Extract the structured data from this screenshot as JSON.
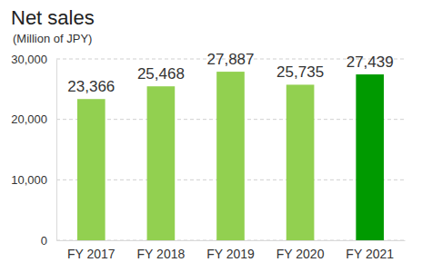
{
  "chart_data": {
    "type": "bar",
    "title": "Net sales",
    "subtitle": "(Million of JPY)",
    "categories": [
      "FY 2017",
      "FY 2018",
      "FY 2019",
      "FY 2020",
      "FY 2021"
    ],
    "values": [
      23366,
      25468,
      27887,
      25735,
      27439
    ],
    "value_labels": [
      "23,366",
      "25,468",
      "27,887",
      "25,735",
      "27,439"
    ],
    "colors": [
      "#92d050",
      "#92d050",
      "#92d050",
      "#92d050",
      "#009a00"
    ],
    "ylim": [
      0,
      30000
    ],
    "yticks": [
      0,
      {
        "value": 10000,
        "label": "10,000"
      },
      {
        "value": 20000,
        "label": "20,000"
      },
      {
        "value": 30000,
        "label": "30,000"
      }
    ],
    "grid": true,
    "data_labels": true
  }
}
